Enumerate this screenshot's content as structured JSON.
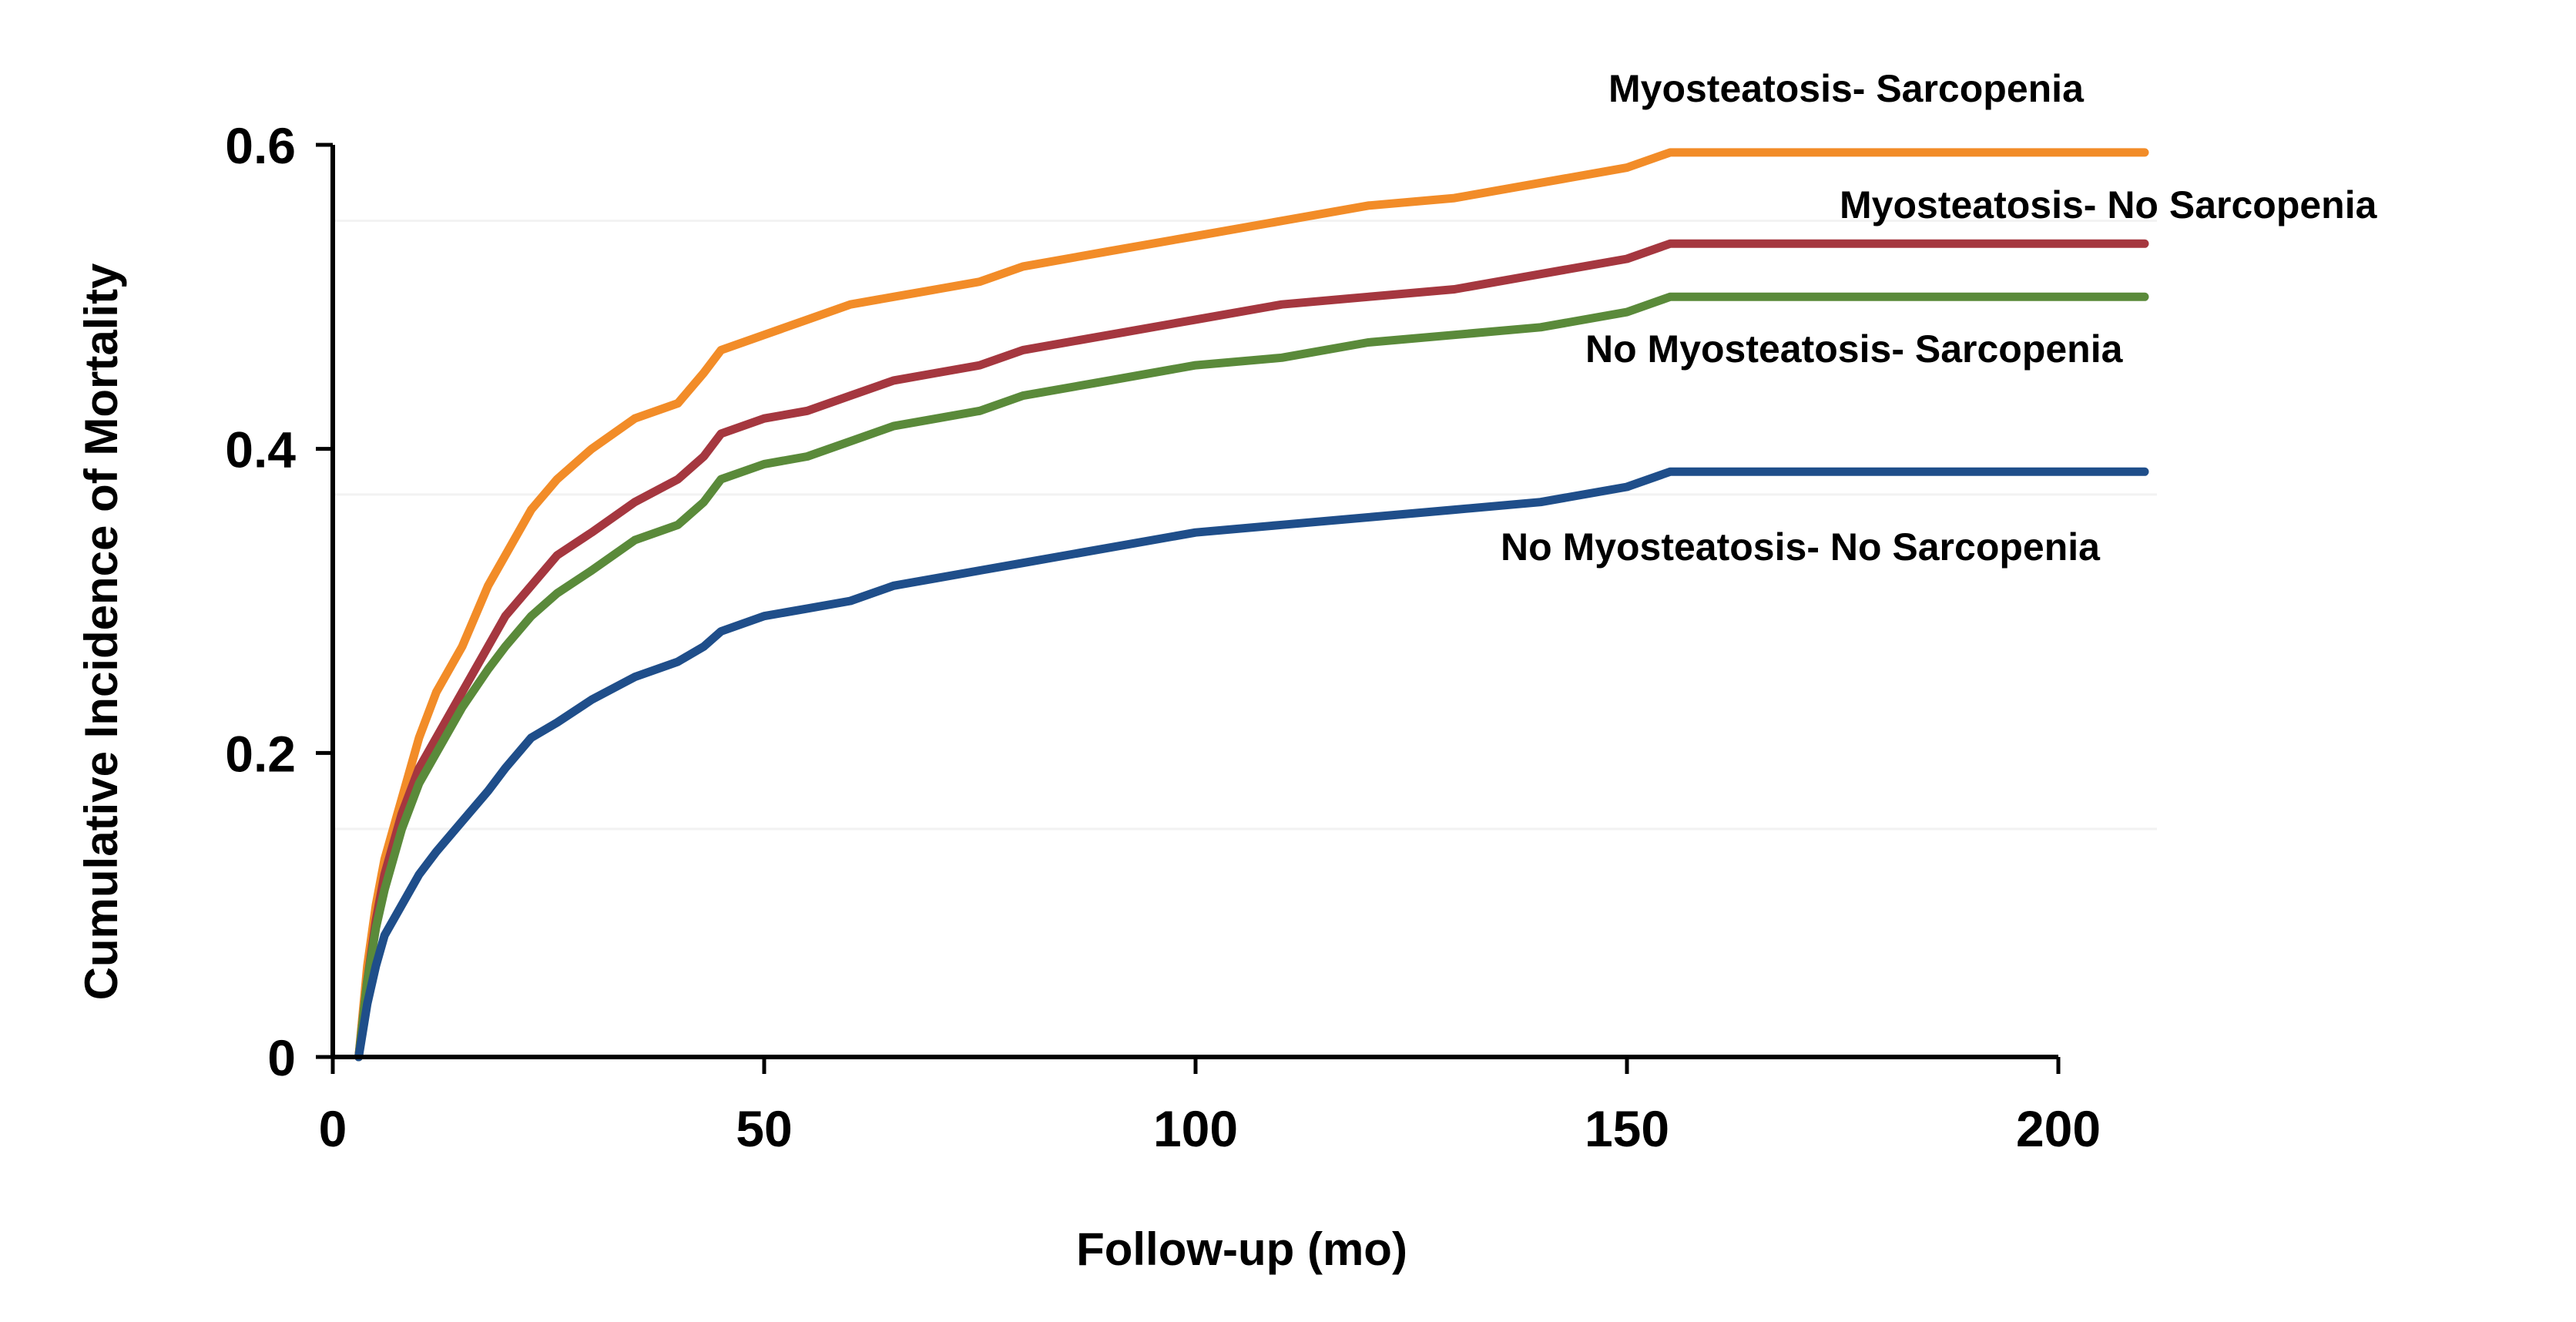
{
  "chart_data": {
    "type": "line",
    "title": "",
    "xlabel": "Follow-up (mo)",
    "ylabel": "Cumulative Incidence of Mortality",
    "xlim": [
      0,
      210
    ],
    "ylim": [
      0,
      0.6
    ],
    "x_ticks": [
      {
        "value": 0,
        "label": "0"
      },
      {
        "value": 50,
        "label": "50"
      },
      {
        "value": 100,
        "label": "100"
      },
      {
        "value": 150,
        "label": "150"
      },
      {
        "value": 200,
        "label": "200"
      }
    ],
    "y_ticks": [
      {
        "value": 0,
        "label": "0"
      },
      {
        "value": 0.2,
        "label": "0.2"
      },
      {
        "value": 0.4,
        "label": "0.4"
      },
      {
        "value": 0.6,
        "label": "0.6"
      }
    ],
    "grid": true,
    "series": [
      {
        "name": "Myosteatosis- Sarcopenia",
        "color": "#F28C28",
        "x": [
          3,
          4,
          5,
          6,
          8,
          10,
          12,
          15,
          18,
          20,
          23,
          26,
          30,
          35,
          40,
          43,
          45,
          50,
          55,
          60,
          65,
          70,
          75,
          80,
          90,
          100,
          110,
          120,
          130,
          140,
          150,
          155,
          210
        ],
        "y": [
          0,
          0.06,
          0.1,
          0.13,
          0.17,
          0.21,
          0.24,
          0.27,
          0.31,
          0.33,
          0.36,
          0.38,
          0.4,
          0.42,
          0.43,
          0.45,
          0.465,
          0.475,
          0.485,
          0.495,
          0.5,
          0.505,
          0.51,
          0.52,
          0.53,
          0.54,
          0.55,
          0.56,
          0.565,
          0.575,
          0.585,
          0.595,
          0.595
        ]
      },
      {
        "name": "Myosteatosis- No Sarcopenia",
        "color": "#A5373F",
        "x": [
          3,
          4,
          5,
          6,
          8,
          10,
          12,
          15,
          18,
          20,
          23,
          26,
          30,
          35,
          40,
          43,
          45,
          50,
          55,
          60,
          65,
          70,
          75,
          80,
          90,
          100,
          110,
          120,
          130,
          140,
          150,
          155,
          210
        ],
        "y": [
          0,
          0.05,
          0.09,
          0.12,
          0.16,
          0.19,
          0.21,
          0.24,
          0.27,
          0.29,
          0.31,
          0.33,
          0.345,
          0.365,
          0.38,
          0.395,
          0.41,
          0.42,
          0.425,
          0.435,
          0.445,
          0.45,
          0.455,
          0.465,
          0.475,
          0.485,
          0.495,
          0.5,
          0.505,
          0.515,
          0.525,
          0.535,
          0.535
        ]
      },
      {
        "name": "No Myosteatosis- Sarcopenia",
        "color": "#5A8A3A",
        "x": [
          3,
          4,
          5,
          6,
          8,
          10,
          12,
          15,
          18,
          20,
          23,
          26,
          30,
          35,
          40,
          43,
          45,
          50,
          55,
          60,
          65,
          70,
          75,
          80,
          90,
          100,
          110,
          120,
          130,
          140,
          150,
          155,
          210
        ],
        "y": [
          0,
          0.05,
          0.085,
          0.11,
          0.15,
          0.18,
          0.2,
          0.23,
          0.255,
          0.27,
          0.29,
          0.305,
          0.32,
          0.34,
          0.35,
          0.365,
          0.38,
          0.39,
          0.395,
          0.405,
          0.415,
          0.42,
          0.425,
          0.435,
          0.445,
          0.455,
          0.46,
          0.47,
          0.475,
          0.48,
          0.49,
          0.5,
          0.5
        ]
      },
      {
        "name": "No Myosteatosis- No Sarcopenia",
        "color": "#1F4E8A",
        "x": [
          3,
          4,
          5,
          6,
          8,
          10,
          12,
          15,
          18,
          20,
          23,
          26,
          30,
          35,
          40,
          43,
          45,
          50,
          55,
          60,
          65,
          70,
          75,
          80,
          90,
          100,
          110,
          120,
          130,
          140,
          150,
          155,
          210
        ],
        "y": [
          0,
          0.035,
          0.06,
          0.08,
          0.1,
          0.12,
          0.135,
          0.155,
          0.175,
          0.19,
          0.21,
          0.22,
          0.235,
          0.25,
          0.26,
          0.27,
          0.28,
          0.29,
          0.295,
          0.3,
          0.31,
          0.315,
          0.32,
          0.325,
          0.335,
          0.345,
          0.35,
          0.355,
          0.36,
          0.365,
          0.375,
          0.385,
          0.385
        ]
      }
    ]
  }
}
